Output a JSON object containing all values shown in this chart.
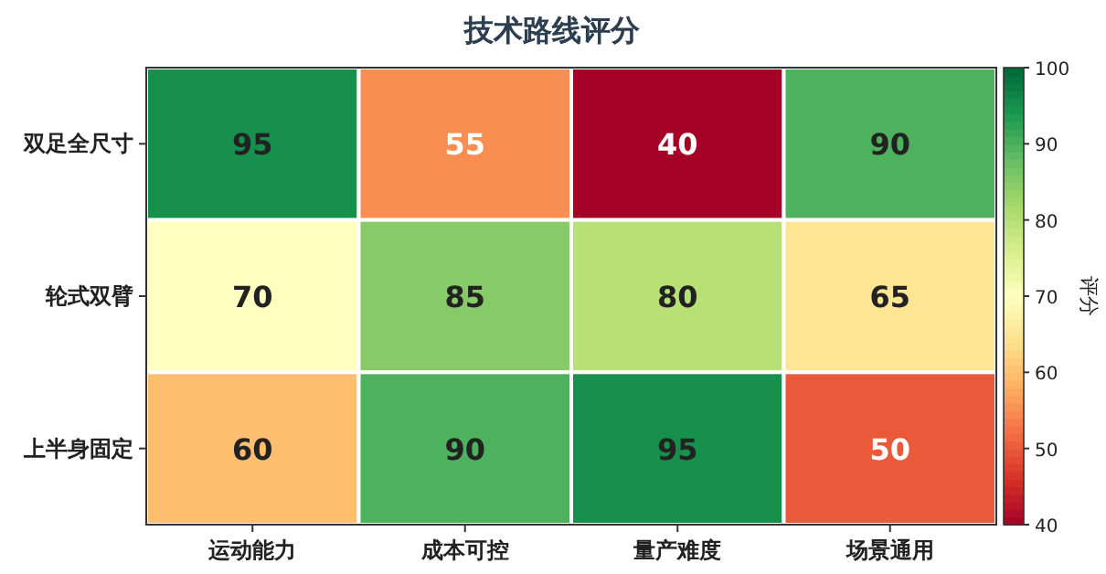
{
  "chart_data": {
    "type": "heatmap",
    "title": "技术路线评分",
    "categories": [
      "运动能力",
      "成本可控",
      "量产难度",
      "场景通用"
    ],
    "y_categories": [
      "双足全尺寸",
      "轮式双臂",
      "上半身固定"
    ],
    "cells": [
      [
        95,
        55,
        40,
        90
      ],
      [
        70,
        85,
        80,
        65
      ],
      [
        60,
        90,
        95,
        50
      ]
    ],
    "data_labels": true,
    "clabel": "评分",
    "clim": [
      40,
      100
    ],
    "cticks": [
      40,
      50,
      60,
      70,
      80,
      90,
      100
    ]
  }
}
